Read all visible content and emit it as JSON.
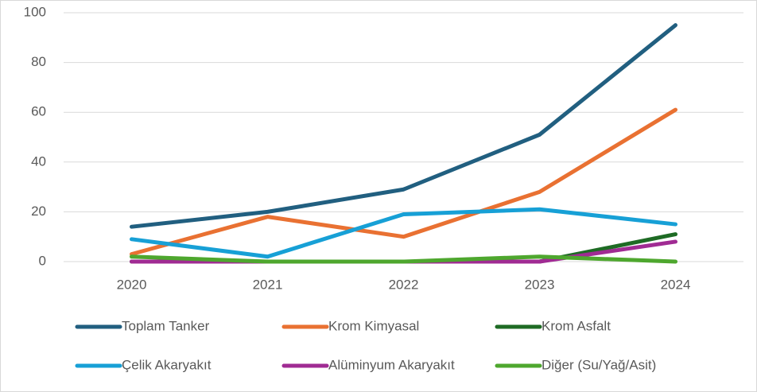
{
  "chart_data": {
    "type": "line",
    "categories": [
      "2020",
      "2021",
      "2022",
      "2023",
      "2024"
    ],
    "series": [
      {
        "name": "Toplam Tanker",
        "color": "#215f80",
        "values": [
          14,
          20,
          29,
          51,
          95
        ]
      },
      {
        "name": "Krom Kimyasal",
        "color": "#e97132",
        "values": [
          3,
          18,
          10,
          28,
          61
        ]
      },
      {
        "name": "Krom Asfalt",
        "color": "#1e6b24",
        "values": [
          0,
          0,
          0,
          0,
          11
        ]
      },
      {
        "name": "Çelik Akaryakıt",
        "color": "#17a0d6",
        "values": [
          9,
          2,
          19,
          21,
          15
        ]
      },
      {
        "name": "Alüminyum Akaryakıt",
        "color": "#a02b93",
        "values": [
          0,
          0,
          0,
          0,
          8
        ]
      },
      {
        "name": "Diğer (Su/Yağ/Asit)",
        "color": "#4ea72e",
        "values": [
          2,
          0,
          0,
          2,
          0
        ]
      }
    ],
    "ylim": [
      0,
      100
    ],
    "yticks": [
      0,
      20,
      40,
      60,
      80,
      100
    ],
    "grid": true,
    "legend": "bottom"
  }
}
